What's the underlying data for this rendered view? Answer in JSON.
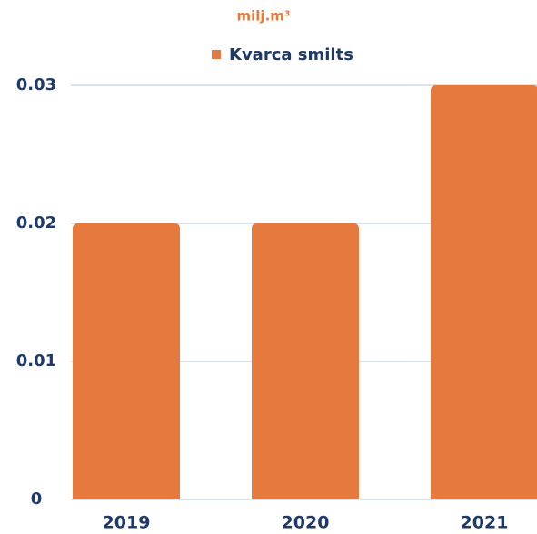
{
  "chart_data": {
    "type": "bar",
    "title": "milj.m³",
    "categories": [
      "2019",
      "2020",
      "2021"
    ],
    "series": [
      {
        "name": "Kvarca smilts",
        "color": "#e67a3e",
        "values": [
          0.02,
          0.02,
          0.03
        ]
      }
    ],
    "ylim": [
      0,
      0.03
    ],
    "yticks": [
      0,
      0.01,
      0.02,
      0.03
    ],
    "grid": true,
    "legend": "top"
  }
}
